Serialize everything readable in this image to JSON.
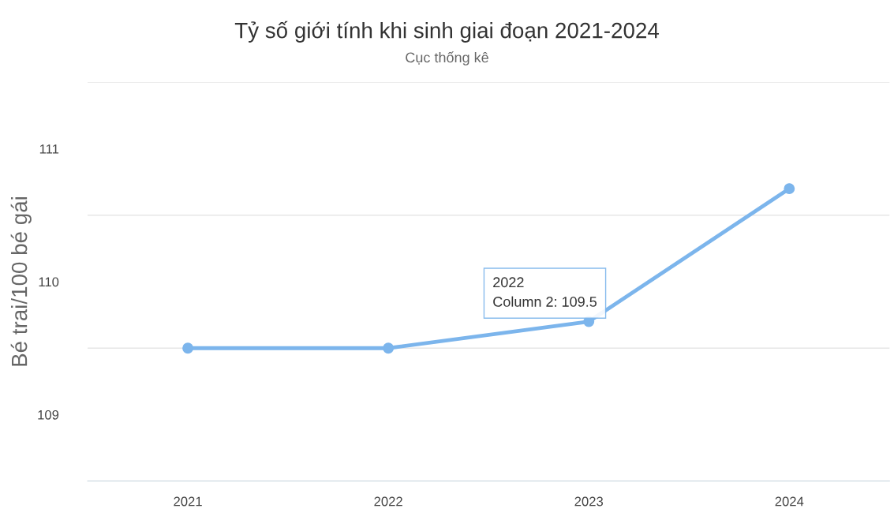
{
  "chart_data": {
    "type": "line",
    "title": "Tỷ số giới tính khi sinh giai đoạn 2021-2024",
    "subtitle": "Cục thống kê",
    "ylabel": "Bé trai/100 bé gái",
    "categories": [
      "2021",
      "2022",
      "2023",
      "2024"
    ],
    "series": [
      {
        "color": "#7cb5ec",
        "values": [
          109.5,
          109.5,
          109.7,
          110.7
        ]
      }
    ],
    "ylim": [
      108.5,
      111.5
    ],
    "yticks": [
      {
        "value": 108.5,
        "label": null
      },
      109,
      {
        "value": 109.5,
        "label": null
      },
      110,
      {
        "value": 110.5,
        "label": null
      },
      111,
      {
        "value": 111.5,
        "label": null
      }
    ],
    "grid": "y",
    "marker": "circle",
    "line_style": "solid",
    "annotations": [
      "2022\nColumn 2: 109.5"
    ]
  }
}
